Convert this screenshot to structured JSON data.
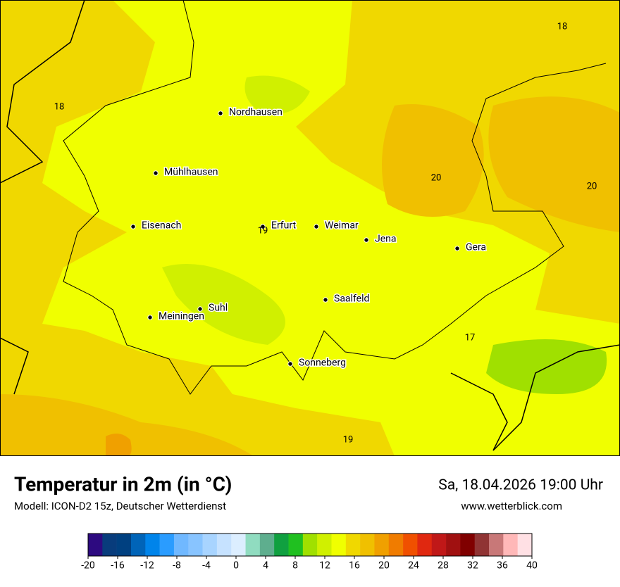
{
  "map": {
    "cities": [
      "Nordhausen",
      "Mühlhausen",
      "Eisenach",
      "Erfurt",
      "Weimar",
      "Jena",
      "Gera",
      "Suhl",
      "Meiningen",
      "Saalfeld",
      "Sonneberg"
    ],
    "values": [
      18,
      18,
      20,
      20,
      19,
      17,
      19
    ]
  },
  "footer": {
    "title": "Temperatur in 2m (in °C)",
    "model": "Modell: ICON-D2 15z, Deutscher Wetterdienst",
    "datetime": "Sa, 18.04.2026 19:00 Uhr",
    "website": "www.wetterblick.com"
  },
  "legend": {
    "ticks": [
      -20,
      -16,
      -12,
      -8,
      -4,
      0,
      4,
      8,
      12,
      16,
      20,
      24,
      28,
      32,
      36,
      40
    ],
    "colors": [
      "#2d0a80",
      "#083c7c",
      "#004080",
      "#0064b8",
      "#0084ea",
      "#2a9cff",
      "#70b8ff",
      "#88c4ff",
      "#a8d4ff",
      "#c6e2ff",
      "#dceeff",
      "#90dcc0",
      "#5eae8e",
      "#10a040",
      "#20c020",
      "#a0e000",
      "#d0f000",
      "#f0ff00",
      "#f0d800",
      "#f0c000",
      "#f0a000",
      "#f07c00",
      "#f05000",
      "#e02810",
      "#c01818",
      "#a01010",
      "#800000",
      "#903434",
      "#c87878",
      "#ffb8b8",
      "#ffe0e4"
    ]
  }
}
